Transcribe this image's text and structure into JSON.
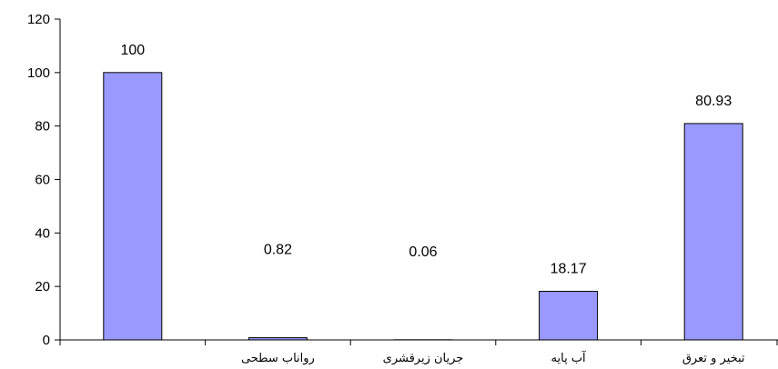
{
  "chart_data": {
    "type": "bar",
    "categories": [
      "",
      "رواناب سطحی",
      "جریان زیرقشری",
      "آب پایه",
      "تبخیر و تعرق"
    ],
    "values": [
      100,
      0.82,
      0.06,
      18.17,
      80.93
    ],
    "data_labels": [
      "100",
      "0.82",
      "0.06",
      "18.17",
      "80.93"
    ],
    "ylim": [
      0,
      120
    ],
    "yticks": [
      0,
      20,
      40,
      60,
      80,
      100,
      120
    ],
    "bar_color": "#9999ff",
    "bar_edge_color": "#000000",
    "grid": false,
    "legend": "none"
  }
}
